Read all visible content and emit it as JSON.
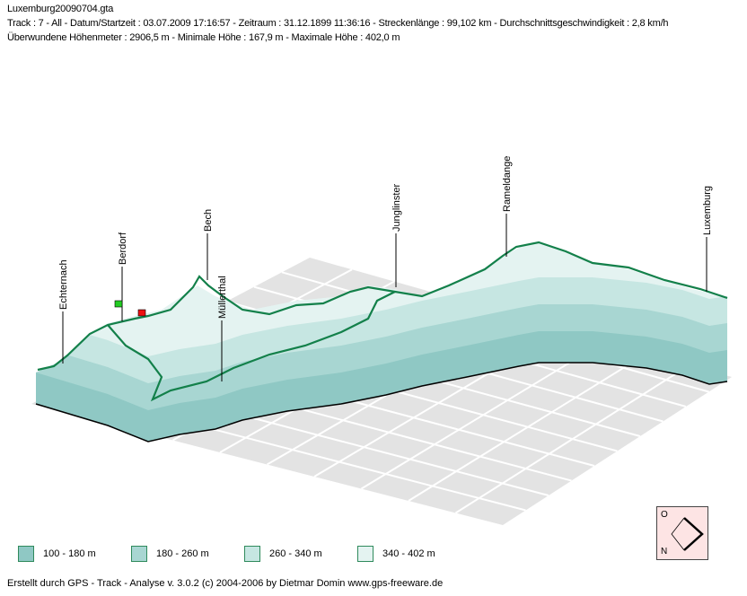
{
  "header": {
    "filename": "Luxemburg20090704.gta",
    "line1": "Track : 7 - All - Datum/Startzeit : 03.07.2009 17:16:57 - Zeitraum : 31.12.1899 11:36:16 - Streckenlänge : 99,102 km - Durchschnittsgeschwindigkeit : 2,8 km/h",
    "line2": "Überwundene Höhenmeter : 2906,5 m  -  Minimale Höhe : 167,9 m  -  Maximale Höhe : 402,0 m"
  },
  "chart_data": {
    "type": "3d-elevation-profile",
    "track": "7 - All",
    "length_km": 99.102,
    "min_elevation_m": 167.9,
    "max_elevation_m": 402.0,
    "places": [
      "Echternach",
      "Berdorf",
      "Bech",
      "Müllerthal",
      "Junglinster",
      "Rameldange",
      "Luxemburg"
    ],
    "legend": [
      {
        "label": "100 - 180 m",
        "color": "#8fc8c4"
      },
      {
        "label": "180 - 260 m",
        "color": "#a8d6d2"
      },
      {
        "label": "260 - 340 m",
        "color": "#c6e6e2"
      },
      {
        "label": "340 - 402 m",
        "color": "#e4f3f1"
      }
    ],
    "start_flag_color": "#22cc22",
    "end_flag_color": "#ee1111"
  },
  "compass": {
    "top": "O",
    "bottom": "N"
  },
  "footer": "Erstellt durch  GPS - Track - Analyse   v. 3.0.2   (c) 2004-2006 by Dietmar Domin  www.gps-freeware.de"
}
